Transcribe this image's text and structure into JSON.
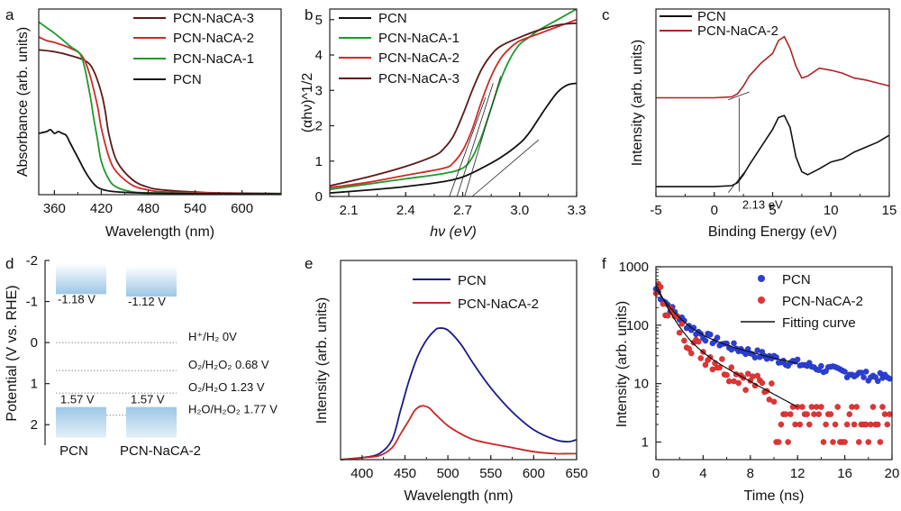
{
  "chart_data": [
    {
      "panel": "a",
      "type": "line",
      "xlabel": "Wavelength (nm)",
      "ylabel": "Absorbance (arb. units)",
      "xlim": [
        340,
        650
      ],
      "ylim": [
        0,
        1
      ],
      "x_ticks": [
        360,
        420,
        480,
        540,
        600
      ],
      "legend_position": "top-right",
      "series": [
        {
          "name": "PCN-NaCA-3",
          "color": "#5a1a1a",
          "x": [
            340,
            360,
            380,
            400,
            410,
            420,
            425,
            430,
            440,
            460,
            480,
            500,
            550,
            600,
            650
          ],
          "y": [
            0.78,
            0.77,
            0.75,
            0.72,
            0.67,
            0.55,
            0.45,
            0.32,
            0.18,
            0.08,
            0.04,
            0.025,
            0.012,
            0.008,
            0.006
          ]
        },
        {
          "name": "PCN-NaCA-2",
          "color": "#d02a2a",
          "x": [
            340,
            350,
            360,
            380,
            395,
            405,
            415,
            420,
            430,
            440,
            460,
            480,
            500,
            550,
            600,
            650
          ],
          "y": [
            0.85,
            0.83,
            0.82,
            0.79,
            0.75,
            0.65,
            0.48,
            0.36,
            0.2,
            0.12,
            0.05,
            0.025,
            0.015,
            0.01,
            0.006,
            0.005
          ]
        },
        {
          "name": "PCN-NaCA-1",
          "color": "#1f9a2a",
          "x": [
            340,
            350,
            360,
            380,
            395,
            405,
            410,
            415,
            420,
            430,
            440,
            460,
            480,
            550,
            650
          ],
          "y": [
            0.93,
            0.9,
            0.87,
            0.8,
            0.74,
            0.55,
            0.42,
            0.3,
            0.18,
            0.08,
            0.04,
            0.015,
            0.01,
            0.006,
            0.004
          ]
        },
        {
          "name": "PCN",
          "color": "#111111",
          "x": [
            340,
            350,
            355,
            360,
            365,
            370,
            375,
            380,
            385,
            390,
            400,
            410,
            420,
            440,
            480,
            550,
            650
          ],
          "y": [
            0.33,
            0.34,
            0.35,
            0.33,
            0.34,
            0.33,
            0.32,
            0.28,
            0.24,
            0.2,
            0.12,
            0.06,
            0.03,
            0.015,
            0.008,
            0.005,
            0.004
          ]
        }
      ]
    },
    {
      "panel": "b",
      "type": "line",
      "xlabel": "hν (eV)",
      "ylabel": "(αhν)^1/2",
      "xlim": [
        2.0,
        3.3
      ],
      "ylim": [
        0,
        5.3
      ],
      "x_ticks": [
        2.1,
        2.4,
        2.7,
        3.0,
        3.3
      ],
      "y_ticks": [
        0,
        1,
        2,
        3,
        4,
        5
      ],
      "legend_position": "top-left",
      "series": [
        {
          "name": "PCN",
          "color": "#111111",
          "x": [
            2.0,
            2.2,
            2.4,
            2.6,
            2.7,
            2.8,
            2.9,
            3.0,
            3.05,
            3.1,
            3.15,
            3.2,
            3.25,
            3.3
          ],
          "y": [
            0.1,
            0.18,
            0.28,
            0.42,
            0.55,
            0.8,
            1.1,
            1.5,
            1.8,
            2.2,
            2.6,
            2.95,
            3.15,
            3.2
          ]
        },
        {
          "name": "PCN-NaCA-1",
          "color": "#1f9a2a",
          "x": [
            2.0,
            2.2,
            2.4,
            2.6,
            2.7,
            2.75,
            2.8,
            2.85,
            2.9,
            2.95,
            3.0,
            3.05,
            3.1,
            3.2,
            3.3
          ],
          "y": [
            0.2,
            0.35,
            0.5,
            0.65,
            0.8,
            1.1,
            1.7,
            2.5,
            3.3,
            3.9,
            4.3,
            4.5,
            4.7,
            5.0,
            5.3
          ]
        },
        {
          "name": "PCN-NaCA-2",
          "color": "#d02a2a",
          "x": [
            2.0,
            2.2,
            2.4,
            2.6,
            2.65,
            2.7,
            2.75,
            2.8,
            2.85,
            2.9,
            2.95,
            3.0,
            3.1,
            3.2,
            3.3
          ],
          "y": [
            0.25,
            0.4,
            0.6,
            0.8,
            0.95,
            1.3,
            1.9,
            2.7,
            3.4,
            3.9,
            4.2,
            4.4,
            4.6,
            4.8,
            5.0
          ]
        },
        {
          "name": "PCN-NaCA-3",
          "color": "#5a1a1a",
          "x": [
            2.0,
            2.2,
            2.4,
            2.55,
            2.6,
            2.65,
            2.7,
            2.75,
            2.8,
            2.85,
            2.9,
            3.0,
            3.1,
            3.2,
            3.3
          ],
          "y": [
            0.3,
            0.55,
            0.85,
            1.15,
            1.35,
            1.7,
            2.3,
            3.0,
            3.6,
            4.0,
            4.25,
            4.5,
            4.7,
            4.85,
            4.9
          ]
        }
      ]
    },
    {
      "panel": "c",
      "type": "line",
      "xlabel": "Binding Energy (eV)",
      "ylabel": "Intensity (arb. units)",
      "xlim": [
        -5,
        15
      ],
      "x_ticks": [
        -5,
        0,
        5,
        10,
        15
      ],
      "legend_position": "top-left",
      "annotation": "2.13 eV",
      "series": [
        {
          "name": "PCN",
          "color": "#111111",
          "x": [
            -5,
            -2,
            0,
            1.5,
            2,
            2.5,
            3,
            4,
            5,
            5.5,
            6,
            6.5,
            7,
            7.5,
            8,
            9,
            10,
            11,
            12,
            13,
            14,
            15
          ],
          "y": [
            0.1,
            0.1,
            0.1,
            0.11,
            0.14,
            0.22,
            0.32,
            0.5,
            0.68,
            0.8,
            0.82,
            0.7,
            0.4,
            0.25,
            0.22,
            0.28,
            0.35,
            0.38,
            0.45,
            0.5,
            0.55,
            0.62
          ]
        },
        {
          "name": "PCN-NaCA-2",
          "color": "#b02424",
          "x": [
            -5,
            -2,
            0,
            1.5,
            2,
            2.5,
            3,
            4,
            5,
            5.5,
            6,
            6.5,
            7,
            7.5,
            8,
            9,
            10,
            11,
            12,
            13,
            14,
            15
          ],
          "y": [
            1.0,
            1.0,
            1.0,
            1.01,
            1.04,
            1.12,
            1.22,
            1.35,
            1.45,
            1.58,
            1.62,
            1.5,
            1.32,
            1.2,
            1.22,
            1.3,
            1.28,
            1.25,
            1.2,
            1.18,
            1.15,
            1.12
          ]
        }
      ]
    },
    {
      "panel": "d",
      "type": "diagram",
      "ylabel": "Potential (V vs. RHE)",
      "ylim": [
        -2,
        2.5
      ],
      "y_ticks": [
        -2,
        -1,
        0,
        1,
        2
      ],
      "y_tick_labels": [
        "-2",
        "-1",
        "0",
        "1",
        "2"
      ],
      "materials": [
        {
          "name": "PCN",
          "cb": -1.18,
          "vb": 1.57,
          "cb_label": "-1.18 V",
          "vb_label": "1.57 V"
        },
        {
          "name": "PCN-NaCA-2",
          "cb": -1.12,
          "vb": 1.57,
          "cb_label": "-1.12 V",
          "vb_label": "1.57 V"
        }
      ],
      "levels": [
        {
          "potential": 0,
          "label": "H⁺/H₂  0V"
        },
        {
          "potential": 0.68,
          "label": "O₂/H₂O₂ 0.68 V"
        },
        {
          "potential": 1.23,
          "label": "O₂/H₂O 1.23 V"
        },
        {
          "potential": 1.77,
          "label": "H₂O/H₂O₂ 1.77 V"
        }
      ]
    },
    {
      "panel": "e",
      "type": "line",
      "xlabel": "Wavelength (nm)",
      "ylabel": "Intensity (arb. units)",
      "xlim": [
        375,
        650
      ],
      "ylim": [
        0,
        1
      ],
      "x_ticks": [
        400,
        450,
        500,
        550,
        600,
        650
      ],
      "legend_position": "top-right",
      "series": [
        {
          "name": "PCN",
          "color": "#1a1a8c",
          "x": [
            375,
            400,
            420,
            435,
            445,
            455,
            465,
            475,
            485,
            490,
            500,
            515,
            530,
            550,
            575,
            600,
            625,
            640,
            650
          ],
          "y": [
            0.0,
            0.01,
            0.03,
            0.1,
            0.25,
            0.4,
            0.52,
            0.6,
            0.65,
            0.66,
            0.65,
            0.58,
            0.48,
            0.36,
            0.24,
            0.15,
            0.1,
            0.09,
            0.1
          ]
        },
        {
          "name": "PCN-NaCA-2",
          "color": "#c62828",
          "x": [
            375,
            400,
            420,
            435,
            445,
            455,
            462,
            470,
            478,
            485,
            500,
            515,
            530,
            550,
            575,
            600,
            625,
            640,
            650
          ],
          "y": [
            0.0,
            0.01,
            0.02,
            0.06,
            0.13,
            0.2,
            0.25,
            0.27,
            0.26,
            0.23,
            0.17,
            0.13,
            0.1,
            0.08,
            0.06,
            0.04,
            0.03,
            0.03,
            0.03
          ]
        }
      ]
    },
    {
      "panel": "f",
      "type": "scatter",
      "xlabel": "Time (ns)",
      "ylabel": "Intensity (arb. units)",
      "yscale": "log",
      "xlim": [
        0,
        20
      ],
      "ylim": [
        0.5,
        1000
      ],
      "x_ticks": [
        0,
        4,
        8,
        12,
        16,
        20
      ],
      "y_ticks": [
        1,
        10,
        100,
        1000
      ],
      "legend_position": "top-right",
      "series": [
        {
          "name": "PCN",
          "color": "#2b3fd6",
          "marker": "circle",
          "a1": 320,
          "t1": 1.2,
          "a2": 90,
          "t2": 6.5,
          "bg": 8
        },
        {
          "name": "PCN-NaCA-2",
          "color": "#e23434",
          "marker": "circle",
          "a1": 420,
          "t1": 0.9,
          "a2": 80,
          "t2": 4.0,
          "bg": 0.8
        },
        {
          "name": "Fitting curve",
          "color": "#111111",
          "marker": "line"
        }
      ]
    }
  ],
  "panel_labels": [
    "a",
    "b",
    "c",
    "d",
    "e",
    "f"
  ]
}
